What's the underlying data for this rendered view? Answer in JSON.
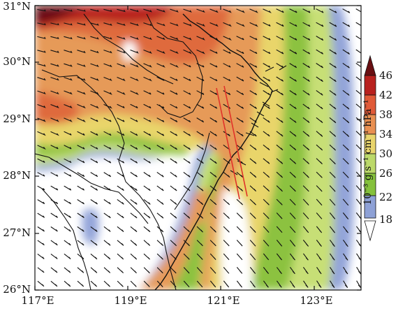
{
  "map": {
    "lat_labels": [
      "31°N",
      "30°N",
      "29°N",
      "28°N",
      "27°N",
      "26°N"
    ],
    "lon_labels": [
      "117°E",
      "119°E",
      "121°E",
      "123°E"
    ],
    "extent": {
      "lon": [
        117,
        124
      ],
      "lat": [
        26,
        31
      ]
    },
    "colorbar": {
      "units": "10⁻³ g s⁻¹ cm⁻¹ hPa⁻¹",
      "levels": [
        46,
        42,
        38,
        34,
        30,
        26,
        22,
        18
      ],
      "colors": [
        "#6a0f12",
        "#b8211e",
        "#e05a38",
        "#e99052",
        "#e9d56c",
        "#bcd96a",
        "#85c13c",
        "#8ea1d6",
        "#ffffff"
      ]
    },
    "field_colors": {
      "white": "#ffffff",
      "blue": "#93a4d9",
      "lightgreen": "#c7df76",
      "green": "#8cc240",
      "yellow": "#e9d56b",
      "orange": "#e69a58",
      "red_orange": "#df6a3e",
      "dark_red": "#b8231f"
    },
    "coast_line_color": "#111111",
    "marker_line_color": "#e0332a"
  }
}
